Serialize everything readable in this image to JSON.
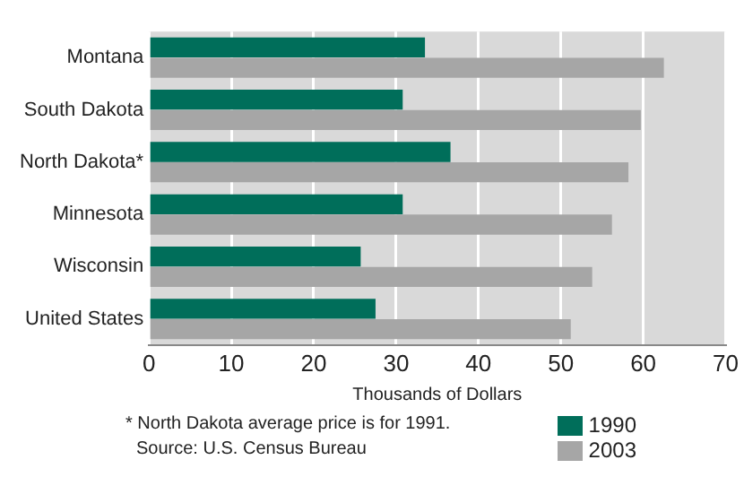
{
  "chart_data": {
    "type": "bar",
    "orientation": "horizontal",
    "xlabel": "Thousands of Dollars",
    "categories": [
      "Montana",
      "South Dakota",
      "North Dakota*",
      "Minnesota",
      "Wisconsin",
      "United States"
    ],
    "series": [
      {
        "name": "1990",
        "color": "#006e5a",
        "values": [
          33.5,
          30.8,
          36.6,
          30.8,
          25.7,
          27.5
        ]
      },
      {
        "name": "2003",
        "color": "#a6a6a6",
        "values": [
          62.5,
          59.7,
          58.2,
          56.2,
          53.8,
          51.2
        ]
      }
    ],
    "xlim": [
      0,
      70
    ],
    "xticks": [
      0,
      10,
      20,
      30,
      40,
      50,
      60,
      70
    ],
    "grid": "x",
    "legend": "bottom right",
    "annotations": [
      "* North Dakota average price is for 1991.",
      "Source: U.S. Census Bureau"
    ]
  }
}
